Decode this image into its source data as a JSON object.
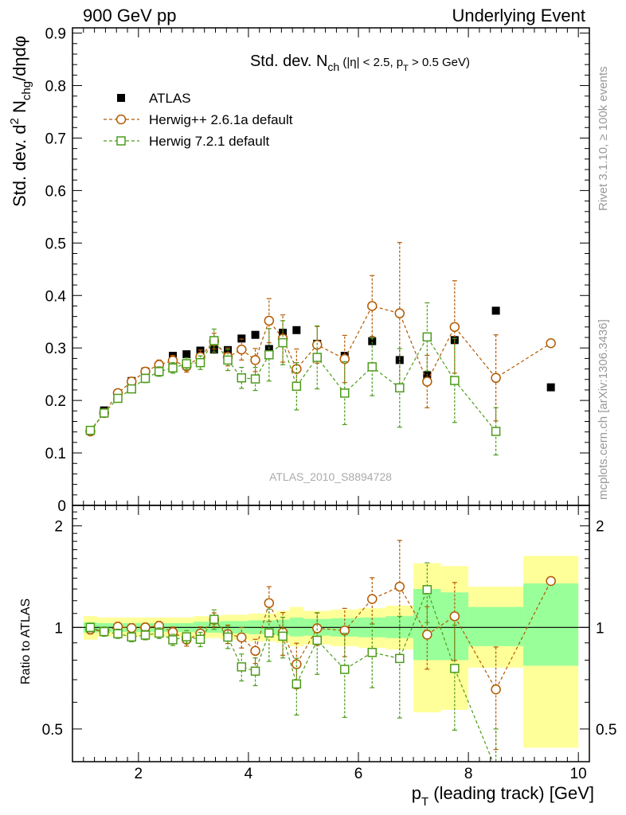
{
  "header": {
    "left": "900 GeV pp",
    "right": "Underlying Event"
  },
  "side_labels": {
    "rivet": "Rivet 3.1.10, ≥ 100k events",
    "mcplots": "mcplots.cern.ch [arXiv:1306.3436]"
  },
  "watermark": "ATLAS_2010_S8894728",
  "chart_data": [
    {
      "type": "scatter",
      "panel": "main",
      "title": {
        "main": "Std. dev. N",
        "sub": "ch",
        "rest1": " (|η| < 2.5, p",
        "sub2": "T",
        "rest2": " > 0.5 GeV)"
      },
      "ylabel": {
        "a": "Std. dev. d",
        "sup": "2",
        "b": " N",
        "sub": "chg",
        "c": "/dηdφ"
      },
      "xlim": [
        0.8,
        10.2
      ],
      "ylim": [
        0,
        0.91
      ],
      "yticks": [
        "0",
        "0.1",
        "0.2",
        "0.3",
        "0.4",
        "0.5",
        "0.6",
        "0.7",
        "0.8",
        "0.9"
      ],
      "ytick_values": [
        0,
        0.1,
        0.2,
        0.3,
        0.4,
        0.5,
        0.6,
        0.7,
        0.8,
        0.9
      ],
      "legend_position": "top-left",
      "legend": [
        "ATLAS",
        "Herwig++ 2.6.1a default",
        "Herwig 7.2.1 default"
      ],
      "series": [
        {
          "name": "ATLAS",
          "marker": "filled-square",
          "color": "#000000",
          "x": [
            1.125,
            1.375,
            1.625,
            1.875,
            2.125,
            2.375,
            2.625,
            2.875,
            3.125,
            3.375,
            3.625,
            3.875,
            4.125,
            4.375,
            4.625,
            4.875,
            5.25,
            5.75,
            6.25,
            6.75,
            7.25,
            7.75,
            8.5,
            9.5
          ],
          "y": [
            0.143,
            0.181,
            0.213,
            0.237,
            0.255,
            0.265,
            0.285,
            0.288,
            0.295,
            0.297,
            0.296,
            0.318,
            0.325,
            0.298,
            0.329,
            0.334,
            0.308,
            0.285,
            0.313,
            0.277,
            0.248,
            0.315,
            0.371,
            0.225
          ]
        },
        {
          "name": "Herwig++ 2.6.1a default",
          "marker": "open-circle",
          "color": "#b35900",
          "x": [
            1.125,
            1.375,
            1.625,
            1.875,
            2.125,
            2.375,
            2.625,
            2.875,
            3.125,
            3.375,
            3.625,
            3.875,
            4.125,
            4.375,
            4.625,
            4.875,
            5.25,
            5.75,
            6.25,
            6.75,
            7.25,
            7.75,
            8.5,
            9.5
          ],
          "y": [
            0.141,
            0.176,
            0.214,
            0.236,
            0.255,
            0.268,
            0.276,
            0.265,
            0.283,
            0.313,
            0.283,
            0.297,
            0.277,
            0.352,
            0.318,
            0.26,
            0.306,
            0.279,
            0.38,
            0.366,
            0.236,
            0.34,
            0.243,
            0.309
          ],
          "err": [
            0.004,
            0.005,
            0.006,
            0.007,
            0.008,
            0.009,
            0.01,
            0.011,
            0.013,
            0.015,
            0.017,
            0.02,
            0.022,
            0.042,
            0.045,
            0.038,
            0.035,
            0.045,
            0.058,
            0.135,
            0.05,
            0.088,
            0.082,
            0.0
          ]
        },
        {
          "name": "Herwig 7.2.1 default",
          "marker": "open-square",
          "color": "#4c9b1a",
          "x": [
            1.125,
            1.375,
            1.625,
            1.875,
            2.125,
            2.375,
            2.625,
            2.875,
            3.125,
            3.375,
            3.625,
            3.875,
            4.125,
            4.375,
            4.625,
            4.875,
            5.25,
            5.75,
            6.25,
            6.75,
            7.25,
            7.75,
            8.5
          ],
          "y": [
            0.143,
            0.176,
            0.204,
            0.222,
            0.242,
            0.255,
            0.262,
            0.27,
            0.272,
            0.314,
            0.277,
            0.243,
            0.241,
            0.287,
            0.31,
            0.227,
            0.282,
            0.214,
            0.264,
            0.224,
            0.321,
            0.238,
            0.141
          ],
          "err": [
            0.004,
            0.005,
            0.006,
            0.007,
            0.008,
            0.009,
            0.01,
            0.011,
            0.013,
            0.022,
            0.02,
            0.02,
            0.022,
            0.05,
            0.042,
            0.045,
            0.06,
            0.06,
            0.055,
            0.075,
            0.065,
            0.08,
            0.045
          ]
        }
      ]
    },
    {
      "type": "scatter",
      "panel": "ratio",
      "ylabel": "Ratio to ATLAS",
      "xlabel": {
        "a": "p",
        "sub": "T",
        "b": " (leading track) [GeV]"
      },
      "xlim": [
        0.8,
        10.2
      ],
      "ylim": [
        0.4,
        2.3
      ],
      "yticks": [
        "0.5",
        "1",
        "2"
      ],
      "ytick_values": [
        0.5,
        1,
        2
      ],
      "xticks": [
        "2",
        "4",
        "6",
        "8",
        "10"
      ],
      "xtick_values": [
        2,
        4,
        6,
        8,
        10
      ],
      "bands": [
        {
          "x0": 1.0,
          "x1": 1.25,
          "y_lo": 0.92,
          "y_hi": 1.08,
          "g_lo": 0.965,
          "g_hi": 1.035
        },
        {
          "x0": 1.25,
          "x1": 3.0,
          "y_lo": 0.94,
          "y_hi": 1.07,
          "g_lo": 0.97,
          "g_hi": 1.03
        },
        {
          "x0": 3.0,
          "x1": 3.5,
          "y_lo": 0.93,
          "y_hi": 1.08,
          "g_lo": 0.965,
          "g_hi": 1.04
        },
        {
          "x0": 3.5,
          "x1": 4.0,
          "y_lo": 0.92,
          "y_hi": 1.09,
          "g_lo": 0.96,
          "g_hi": 1.045
        },
        {
          "x0": 4.0,
          "x1": 4.5,
          "y_lo": 0.91,
          "y_hi": 1.1,
          "g_lo": 0.955,
          "g_hi": 1.05
        },
        {
          "x0": 4.5,
          "x1": 4.75,
          "y_lo": 0.9,
          "y_hi": 1.12,
          "g_lo": 0.95,
          "g_hi": 1.055
        },
        {
          "x0": 4.75,
          "x1": 5.0,
          "y_lo": 0.88,
          "y_hi": 1.15,
          "g_lo": 0.94,
          "g_hi": 1.07
        },
        {
          "x0": 5.0,
          "x1": 5.5,
          "y_lo": 0.89,
          "y_hi": 1.12,
          "g_lo": 0.945,
          "g_hi": 1.06
        },
        {
          "x0": 5.5,
          "x1": 6.0,
          "y_lo": 0.88,
          "y_hi": 1.13,
          "g_lo": 0.94,
          "g_hi": 1.065
        },
        {
          "x0": 6.0,
          "x1": 6.5,
          "y_lo": 0.87,
          "y_hi": 1.14,
          "g_lo": 0.935,
          "g_hi": 1.07
        },
        {
          "x0": 6.5,
          "x1": 7.0,
          "y_lo": 0.86,
          "y_hi": 1.16,
          "g_lo": 0.93,
          "g_hi": 1.08
        },
        {
          "x0": 7.0,
          "x1": 7.5,
          "y_lo": 0.56,
          "y_hi": 1.55,
          "g_lo": 0.8,
          "g_hi": 1.3
        },
        {
          "x0": 7.5,
          "x1": 8.0,
          "y_lo": 0.57,
          "y_hi": 1.52,
          "g_lo": 0.8,
          "g_hi": 1.27
        },
        {
          "x0": 8.0,
          "x1": 9.0,
          "y_lo": 0.76,
          "y_hi": 1.32,
          "g_lo": 0.88,
          "g_hi": 1.15
        },
        {
          "x0": 9.0,
          "x1": 10.0,
          "y_lo": 0.44,
          "y_hi": 1.63,
          "g_lo": 0.77,
          "g_hi": 1.35
        }
      ],
      "series": [
        {
          "name": "Herwig++ 2.6.1a default",
          "marker": "open-circle",
          "color": "#b35900",
          "x": [
            1.125,
            1.375,
            1.625,
            1.875,
            2.125,
            2.375,
            2.625,
            2.875,
            3.125,
            3.375,
            3.625,
            3.875,
            4.125,
            4.375,
            4.625,
            4.875,
            5.25,
            5.75,
            6.25,
            6.75,
            7.25,
            7.75,
            8.5,
            9.5
          ],
          "y": [
            0.986,
            0.972,
            1.005,
            0.996,
            1.0,
            1.011,
            0.968,
            0.92,
            0.959,
            1.054,
            0.956,
            0.934,
            0.852,
            1.181,
            0.967,
            0.778,
            0.994,
            0.979,
            1.214,
            1.321,
            0.952,
            1.079,
            0.655,
            1.373
          ],
          "err": [
            0.03,
            0.03,
            0.03,
            0.03,
            0.03,
            0.03,
            0.035,
            0.04,
            0.045,
            0.05,
            0.06,
            0.065,
            0.07,
            0.14,
            0.14,
            0.12,
            0.11,
            0.16,
            0.19,
            0.49,
            0.2,
            0.28,
            0.22,
            0.0
          ]
        },
        {
          "name": "Herwig 7.2.1 default",
          "marker": "open-square",
          "color": "#4c9b1a",
          "x": [
            1.125,
            1.375,
            1.625,
            1.875,
            2.125,
            2.375,
            2.625,
            2.875,
            3.125,
            3.375,
            3.625,
            3.875,
            4.125,
            4.375,
            4.625,
            4.875,
            5.25,
            5.75,
            6.25,
            6.75,
            7.25,
            7.75,
            8.5
          ],
          "y": [
            1.0,
            0.972,
            0.958,
            0.937,
            0.949,
            0.962,
            0.919,
            0.938,
            0.922,
            1.057,
            0.936,
            0.764,
            0.742,
            0.963,
            0.942,
            0.68,
            0.916,
            0.751,
            0.843,
            0.809,
            1.294,
            0.756,
            0.38
          ],
          "err": [
            0.03,
            0.03,
            0.03,
            0.03,
            0.03,
            0.035,
            0.035,
            0.04,
            0.045,
            0.07,
            0.07,
            0.07,
            0.07,
            0.17,
            0.13,
            0.13,
            0.19,
            0.21,
            0.18,
            0.27,
            0.26,
            0.26,
            0.12
          ]
        }
      ]
    }
  ]
}
